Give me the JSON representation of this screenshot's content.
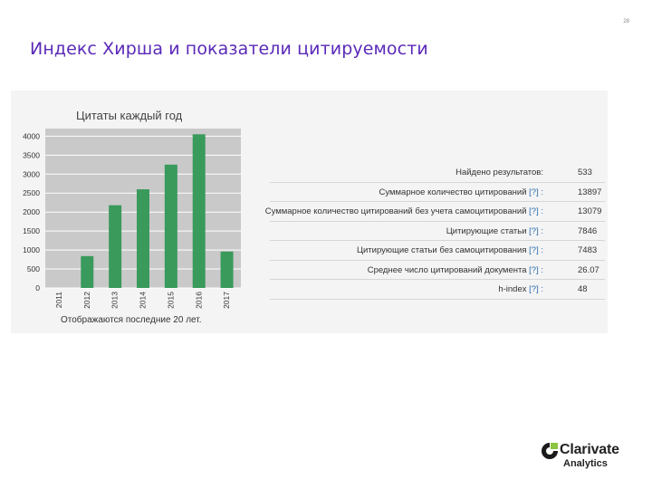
{
  "slide": {
    "page_number": "28",
    "title": "Индекс Хирша и показатели цитируемости"
  },
  "chart_data": {
    "type": "bar",
    "title": "Цитаты каждый год",
    "categories": [
      "2011",
      "2012",
      "2013",
      "2014",
      "2015",
      "2016",
      "2017"
    ],
    "values": [
      0,
      840,
      2180,
      2600,
      3250,
      4050,
      960
    ],
    "ylim": [
      0,
      4200
    ],
    "yticks": [
      0,
      500,
      1000,
      1500,
      2000,
      2500,
      3000,
      3500,
      4000
    ],
    "grid": true,
    "bar_color": "#3a9a5c",
    "plot_bg": "#c9c9c9"
  },
  "footnote": "Отображаются последние 20 лет.",
  "stats": {
    "rows": [
      {
        "label": "Найдено результатов:",
        "help": "",
        "value": "533"
      },
      {
        "label": "Суммарное количество цитирований",
        "help": "[?] :",
        "value": "13897"
      },
      {
        "label": "Суммарное количество цитирований без учета самоцитирований",
        "help": "[?] :",
        "value": "13079"
      },
      {
        "label": "Цитирующие статьи",
        "help": "[?] :",
        "value": "7846"
      },
      {
        "label": "Цитирующие статьи без самоцитирования",
        "help": "[?] :",
        "value": "7483"
      },
      {
        "label": "Среднее число цитирований документа",
        "help": "[?] :",
        "value": "26.07"
      },
      {
        "label": "h-index",
        "help": "[?] :",
        "value": "48"
      }
    ]
  },
  "logo": {
    "name": "Clarivate",
    "sub": "Analytics",
    "icon": "clarivate-mark-icon",
    "colors": [
      "#1a1a1a",
      "#8bc53f"
    ]
  }
}
